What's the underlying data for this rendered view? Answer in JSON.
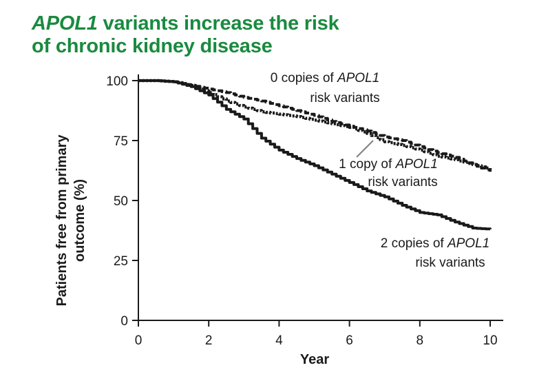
{
  "title": {
    "line1_italic": "APOL1",
    "line1_rest": " variants increase the risk",
    "line2": "of chronic kidney disease"
  },
  "colors": {
    "title": "#1a8a3f",
    "lines": "#1a1a1a",
    "leader": "#7f7f7f"
  },
  "chart_data": {
    "type": "line",
    "title": "APOL1 variants increase the risk of chronic kidney disease",
    "xlabel": "Year",
    "ylabel_lines": [
      "Patients free from primary",
      "outcome (%)"
    ],
    "xlim": [
      0,
      10
    ],
    "ylim": [
      0,
      100
    ],
    "xticks": [
      0,
      2,
      4,
      6,
      8,
      10
    ],
    "yticks": [
      0,
      25,
      50,
      75,
      100
    ],
    "grid": false,
    "series": [
      {
        "name": "0 copies of APOL1 risk variants",
        "dash": "dashed",
        "x": [
          0,
          0.5,
          1,
          1.5,
          2,
          2.5,
          3,
          3.5,
          4,
          4.5,
          5,
          5.5,
          6,
          6.5,
          7,
          7.5,
          8,
          8.5,
          9,
          9.5,
          10
        ],
        "y": [
          100,
          100,
          99.5,
          98,
          96.5,
          95,
          93,
          91.5,
          89.5,
          87.5,
          85.5,
          83,
          81,
          79,
          76.5,
          75,
          72.5,
          70,
          68,
          65,
          62
        ]
      },
      {
        "name": "1 copy of APOL1 risk variants",
        "dash": "dotted",
        "x": [
          0,
          0.5,
          1,
          1.5,
          2,
          2.5,
          3,
          3.5,
          4,
          4.5,
          5,
          5.5,
          6,
          6.5,
          7,
          7.5,
          8,
          8.5,
          9,
          9.5,
          10
        ],
        "y": [
          100,
          100,
          99.5,
          98,
          95,
          91.5,
          89,
          87,
          86,
          85,
          83.5,
          82,
          80.5,
          78,
          74.5,
          73,
          71,
          68.5,
          67,
          65,
          63
        ]
      },
      {
        "name": "2 copies of APOL1 risk variants",
        "dash": "solid",
        "x": [
          0,
          0.5,
          1,
          1.5,
          2,
          2.5,
          3,
          3.5,
          4,
          4.5,
          5,
          5.5,
          6,
          6.5,
          7,
          7.5,
          8,
          8.5,
          9,
          9.5,
          10
        ],
        "y": [
          100,
          100,
          99.5,
          97.5,
          94,
          88,
          84,
          76,
          71,
          67.5,
          64.5,
          61,
          57.5,
          54,
          51.5,
          48,
          45,
          44,
          41,
          38.5,
          38
        ]
      }
    ],
    "annotations": [
      {
        "line1_prefix": "0 copies of ",
        "line1_italic": "APOL1",
        "line2": "risk variants"
      },
      {
        "line1_prefix": "1 copy of ",
        "line1_italic": "APOL1",
        "line2": "risk variants"
      },
      {
        "line1_prefix": "2 copies of ",
        "line1_italic": "APOL1",
        "line2": "risk variants"
      }
    ]
  }
}
